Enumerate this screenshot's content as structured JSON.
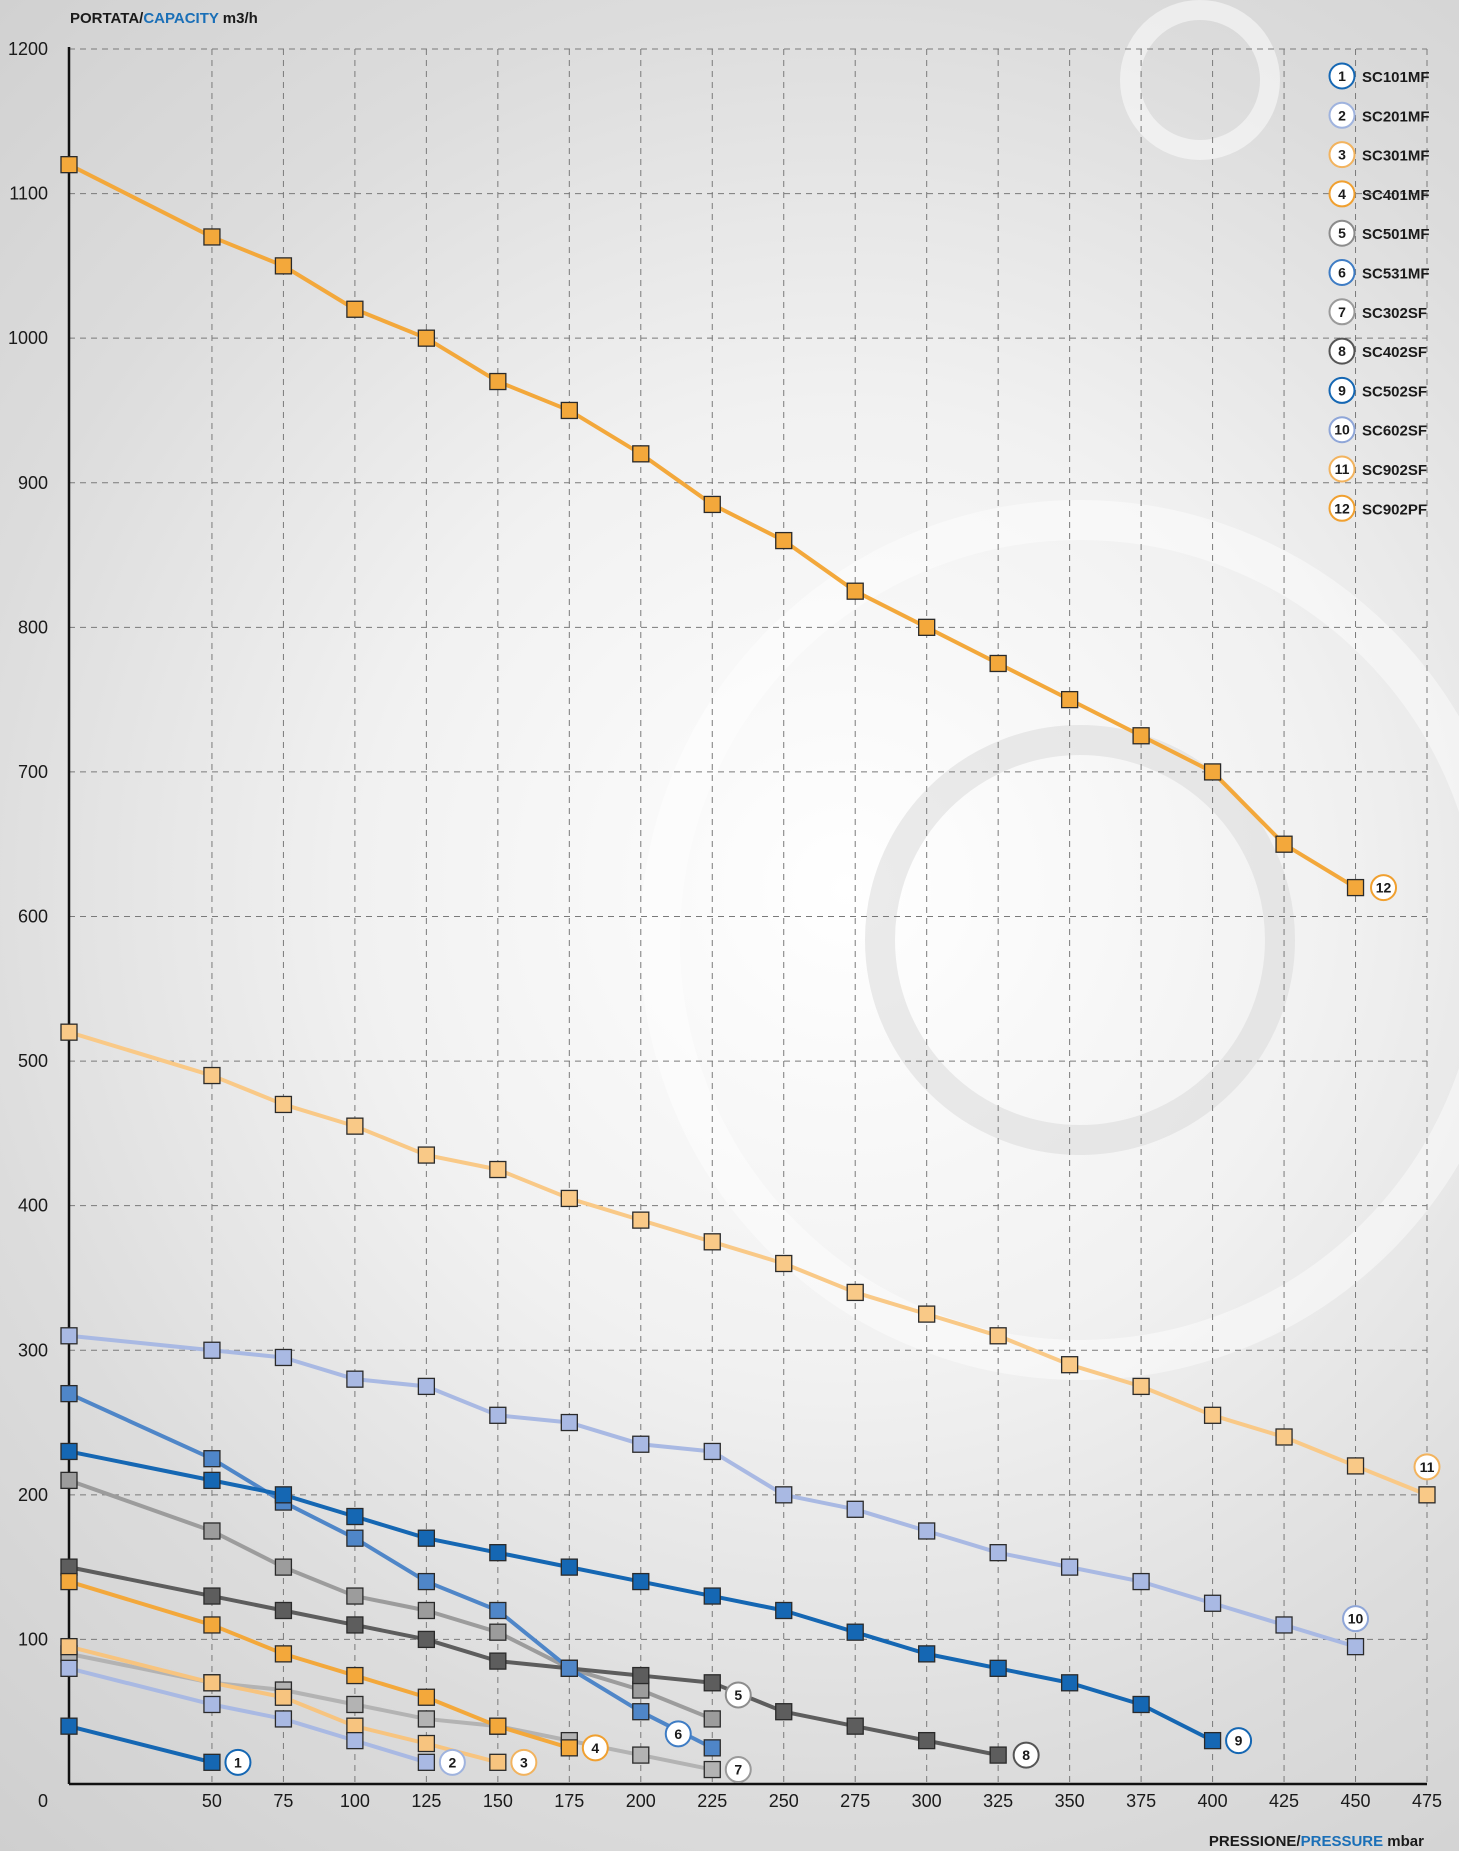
{
  "chart_data": {
    "type": "line",
    "ylabel_parts": [
      "PORTATA/",
      "CAPACITY",
      " m3/h"
    ],
    "xlabel_parts": [
      "PRESSIONE/",
      "PRESSURE",
      " mbar"
    ],
    "y_ticks": [
      0,
      100,
      200,
      300,
      400,
      500,
      600,
      700,
      800,
      900,
      1000,
      1100,
      1200
    ],
    "x_ticks": [
      0,
      50,
      75,
      100,
      125,
      150,
      175,
      200,
      225,
      250,
      275,
      300,
      325,
      350,
      375,
      400,
      425,
      450,
      475
    ],
    "x_tick_labels": [
      "",
      "50",
      "75",
      "100",
      "125",
      "150",
      "175",
      "200",
      "225",
      "250",
      "275",
      "300",
      "325",
      "350",
      "375",
      "400",
      "425",
      "450",
      "475"
    ],
    "xlim": [
      0,
      475
    ],
    "ylim": [
      0,
      1200
    ],
    "grid": true,
    "legend_position": "top-right",
    "accent_color": "#1a6fb7",
    "series": [
      {
        "id": "1",
        "name": "SC101MF",
        "color": "#1567b3",
        "badge_color": "#1567b3",
        "x": [
          0,
          50
        ],
        "y": [
          40,
          15
        ]
      },
      {
        "id": "2",
        "name": "SC201MF",
        "color": "#a9b9e3",
        "badge_color": "#9fb3de",
        "x": [
          0,
          50,
          75,
          100,
          125
        ],
        "y": [
          80,
          55,
          45,
          30,
          15
        ]
      },
      {
        "id": "3",
        "name": "SC301MF",
        "color": "#f7c47f",
        "badge_color": "#f2b35e",
        "x": [
          0,
          50,
          75,
          100,
          125,
          150
        ],
        "y": [
          95,
          70,
          60,
          40,
          28,
          15
        ]
      },
      {
        "id": "4",
        "name": "SC401MF",
        "color": "#f3a83b",
        "badge_color": "#f0a030",
        "x": [
          0,
          50,
          75,
          100,
          125,
          150,
          175
        ],
        "y": [
          140,
          110,
          90,
          75,
          60,
          40,
          25
        ]
      },
      {
        "id": "5",
        "name": "SC501MF",
        "color": "#9c9c9c",
        "badge_color": "#8c8c8c",
        "x": [
          0,
          50,
          75,
          100,
          125,
          150,
          175,
          200,
          225
        ],
        "y": [
          210,
          175,
          150,
          130,
          120,
          105,
          80,
          65,
          45
        ]
      },
      {
        "id": "6",
        "name": "SC531MF",
        "color": "#4f86c8",
        "badge_color": "#3e7cc4",
        "x": [
          0,
          50,
          75,
          100,
          125,
          150,
          175,
          200,
          225
        ],
        "y": [
          270,
          225,
          195,
          170,
          140,
          120,
          80,
          50,
          25
        ]
      },
      {
        "id": "7",
        "name": "SC302SF",
        "color": "#b3b3b3",
        "badge_color": "#9a9a9a",
        "x": [
          0,
          50,
          75,
          100,
          125,
          150,
          175,
          200,
          225
        ],
        "y": [
          90,
          70,
          65,
          55,
          45,
          40,
          30,
          20,
          10
        ]
      },
      {
        "id": "8",
        "name": "SC402SF",
        "color": "#5d5d5d",
        "badge_color": "#555555",
        "x": [
          0,
          50,
          75,
          100,
          125,
          150,
          175,
          200,
          225,
          250,
          275,
          300,
          325
        ],
        "y": [
          150,
          130,
          120,
          110,
          100,
          85,
          80,
          75,
          70,
          50,
          40,
          30,
          20
        ]
      },
      {
        "id": "9",
        "name": "SC502SF",
        "color": "#1567b3",
        "badge_color": "#1567b3",
        "x": [
          0,
          50,
          75,
          100,
          125,
          150,
          175,
          200,
          225,
          250,
          275,
          300,
          325,
          350,
          375,
          400
        ],
        "y": [
          230,
          210,
          200,
          185,
          170,
          160,
          150,
          140,
          130,
          120,
          105,
          90,
          80,
          70,
          55,
          30
        ]
      },
      {
        "id": "10",
        "name": "SC602SF",
        "color": "#a9b9e3",
        "badge_color": "#8fa6d8",
        "x": [
          0,
          50,
          75,
          100,
          125,
          150,
          175,
          200,
          225,
          250,
          275,
          300,
          325,
          350,
          375,
          400,
          425,
          450
        ],
        "y": [
          310,
          300,
          295,
          280,
          275,
          255,
          250,
          235,
          230,
          200,
          190,
          175,
          160,
          150,
          140,
          125,
          110,
          95
        ]
      },
      {
        "id": "11",
        "name": "SC902SF",
        "color": "#f9c987",
        "badge_color": "#f2b35e",
        "x": [
          0,
          50,
          75,
          100,
          125,
          150,
          175,
          200,
          225,
          250,
          275,
          300,
          325,
          350,
          375,
          400,
          425,
          450,
          475
        ],
        "y": [
          520,
          490,
          470,
          455,
          435,
          425,
          405,
          390,
          375,
          360,
          340,
          325,
          310,
          290,
          275,
          255,
          240,
          220,
          200
        ]
      },
      {
        "id": "12",
        "name": "SC902PF",
        "color": "#f3a83b",
        "badge_color": "#f0a030",
        "x": [
          0,
          50,
          75,
          100,
          125,
          150,
          175,
          200,
          225,
          250,
          275,
          300,
          325,
          350,
          375,
          400,
          425,
          450
        ],
        "y": [
          1120,
          1070,
          1050,
          1020,
          1000,
          970,
          950,
          920,
          885,
          860,
          825,
          800,
          775,
          750,
          725,
          700,
          650,
          620
        ]
      }
    ]
  }
}
